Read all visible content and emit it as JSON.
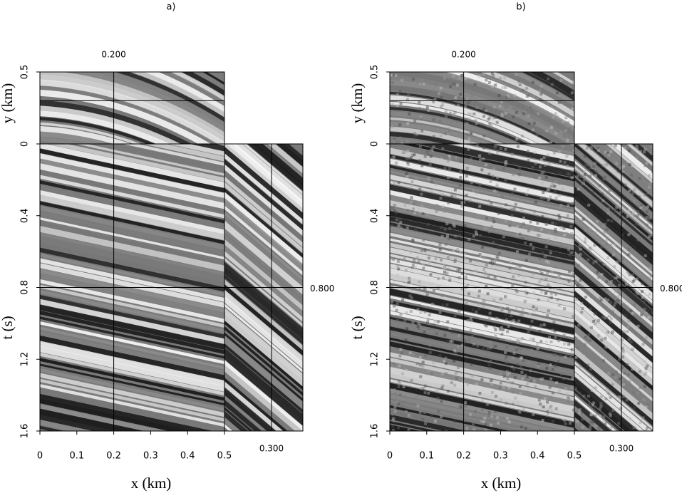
{
  "chart_data": [
    {
      "type": "cube",
      "label": "a)",
      "xlabel": "x (km)",
      "ylabel": "t (s)",
      "y2label": "y (km)",
      "xlim": [
        0,
        0.5
      ],
      "xticks": [
        0,
        0.1,
        0.2,
        0.3,
        0.4,
        0.5
      ],
      "ylim": [
        0,
        1.6
      ],
      "yticks": [
        0.4,
        0.8,
        1.2,
        1.6
      ],
      "y2lim": [
        0,
        0.5
      ],
      "y2ticks": [
        0,
        0.5
      ],
      "x_slice": {
        "value": 0.2,
        "label": "0.200"
      },
      "y_slice": {
        "value": 0.8,
        "label": "0.800"
      },
      "y2_slice": {
        "value": 0.3,
        "label": "0.300"
      }
    },
    {
      "type": "cube",
      "label": "b)",
      "xlabel": "x (km)",
      "ylabel": "t (s)",
      "y2label": "y (km)",
      "xlim": [
        0,
        0.5
      ],
      "xticks": [
        0,
        0.1,
        0.2,
        0.3,
        0.4,
        0.5
      ],
      "ylim": [
        0,
        1.6
      ],
      "yticks": [
        0.4,
        0.8,
        1.2,
        1.6
      ],
      "y2lim": [
        0,
        0.5
      ],
      "y2ticks": [
        0,
        0.5
      ],
      "x_slice": {
        "value": 0.2,
        "label": "0.200"
      },
      "y_slice": {
        "value": 0.8,
        "label": "0.800"
      },
      "y2_slice": {
        "value": 0.3,
        "label": "0.300"
      }
    }
  ]
}
